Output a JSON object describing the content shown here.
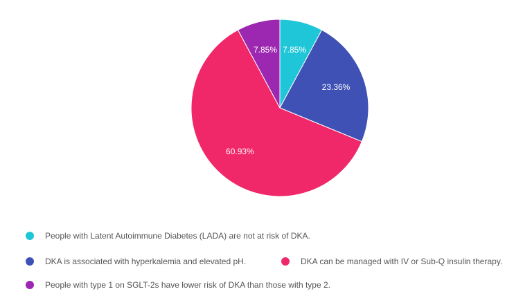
{
  "chart_data": {
    "type": "pie",
    "title": "",
    "slices": [
      {
        "label": "People with Latent Autoimmune Diabetes (LADA) are not at risk of DKA.",
        "value": 7.85,
        "value_label": "7.85%",
        "color": "#1ec6d8"
      },
      {
        "label": "DKA is associated with hyperkalemia and elevated pH.",
        "value": 23.36,
        "value_label": "23.36%",
        "color": "#3f51b5"
      },
      {
        "label": "DKA can be managed with IV or Sub-Q insulin therapy.",
        "value": 60.93,
        "value_label": "60.93%",
        "color": "#f02768"
      },
      {
        "label": "People with type 1 on SGLT-2s have lower risk of DKA than those with type 2.",
        "value": 7.85,
        "value_label": "7.85%",
        "color": "#9c27b0"
      }
    ],
    "start": "12 o'clock",
    "direction": "clockwise",
    "legend_position": "bottom-left"
  }
}
